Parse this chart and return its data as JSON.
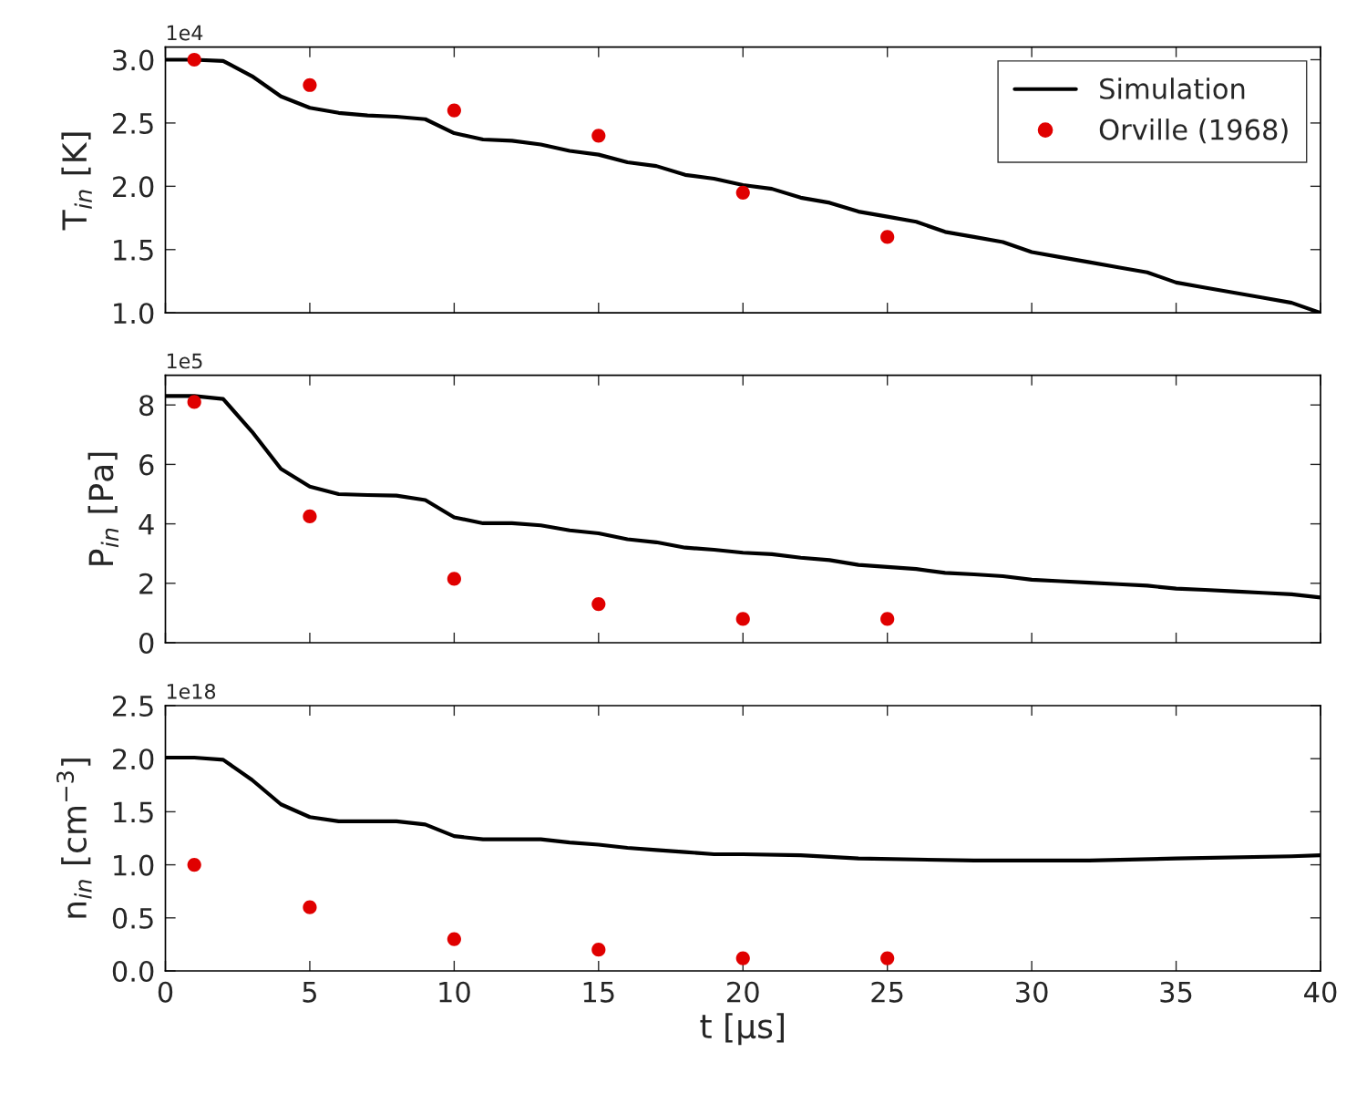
{
  "chart_data": [
    {
      "type": "line",
      "ylabel": "T$_{in}$ [K]",
      "annotations": [
        "1e4"
      ],
      "xlim": [
        0,
        40
      ],
      "xticks": [
        0,
        5,
        10,
        15,
        20,
        25,
        30,
        35,
        40
      ],
      "ylim": [
        1.0,
        3.1
      ],
      "yticks": [
        {
          "value": 1.0,
          "label": "1.0"
        },
        {
          "value": 1.5,
          "label": "1.5"
        },
        {
          "value": 2.0,
          "label": "2.0"
        },
        {
          "value": 2.5,
          "label": "2.5"
        },
        {
          "value": 3.0,
          "label": "3.0"
        }
      ],
      "tick_labels": "y",
      "grid": false,
      "legend": "top right",
      "series": [
        {
          "name": "Simulation",
          "color": "#000000",
          "marker": "none",
          "x": [
            0,
            1,
            2,
            3,
            4,
            5,
            6,
            7,
            8,
            9,
            10,
            11,
            12,
            13,
            14,
            15,
            16,
            17,
            18,
            19,
            20,
            21,
            22,
            23,
            24,
            25,
            26,
            27,
            28,
            29,
            30,
            31,
            32,
            33,
            34,
            35,
            36,
            37,
            38,
            39,
            40
          ],
          "values": [
            3.0,
            3.0,
            2.99,
            2.87,
            2.71,
            2.62,
            2.58,
            2.56,
            2.55,
            2.53,
            2.42,
            2.37,
            2.36,
            2.33,
            2.28,
            2.25,
            2.19,
            2.16,
            2.09,
            2.06,
            2.01,
            1.98,
            1.91,
            1.87,
            1.8,
            1.76,
            1.72,
            1.64,
            1.6,
            1.56,
            1.48,
            1.44,
            1.4,
            1.36,
            1.32,
            1.24,
            1.2,
            1.16,
            1.12,
            1.08,
            1.0
          ]
        },
        {
          "name": "Orville (1968)",
          "type": "scatter",
          "color": "#e00000",
          "marker": "circle",
          "x": [
            1,
            5,
            10,
            15,
            20,
            25
          ],
          "values": [
            3.0,
            2.8,
            2.6,
            2.4,
            1.95,
            1.6
          ]
        }
      ]
    },
    {
      "type": "line",
      "ylabel": "P$_{in}$ [Pa]",
      "annotations": [
        "1e5"
      ],
      "xlim": [
        0,
        40
      ],
      "xticks": [
        0,
        5,
        10,
        15,
        20,
        25,
        30,
        35,
        40
      ],
      "ylim": [
        0,
        9
      ],
      "yticks": [
        0,
        2,
        4,
        6,
        8
      ],
      "tick_labels": "y",
      "grid": false,
      "series": [
        {
          "color": "#000000",
          "marker": "none",
          "x": [
            0,
            1,
            2,
            3,
            4,
            5,
            6,
            7,
            8,
            9,
            10,
            11,
            12,
            13,
            14,
            15,
            16,
            17,
            18,
            19,
            20,
            21,
            22,
            23,
            24,
            25,
            26,
            27,
            28,
            29,
            30,
            31,
            32,
            33,
            34,
            35,
            36,
            37,
            38,
            39,
            40
          ],
          "values": [
            8.3,
            8.3,
            8.2,
            7.1,
            5.85,
            5.25,
            5.0,
            4.97,
            4.95,
            4.8,
            4.22,
            4.02,
            4.02,
            3.95,
            3.78,
            3.68,
            3.48,
            3.38,
            3.2,
            3.13,
            3.03,
            2.98,
            2.86,
            2.78,
            2.62,
            2.55,
            2.48,
            2.35,
            2.3,
            2.24,
            2.12,
            2.07,
            2.02,
            1.97,
            1.92,
            1.82,
            1.78,
            1.73,
            1.68,
            1.63,
            1.52
          ]
        },
        {
          "type": "scatter",
          "color": "#e00000",
          "marker": "circle",
          "x": [
            1,
            5,
            10,
            15,
            20,
            25
          ],
          "values": [
            8.1,
            4.25,
            2.15,
            1.3,
            0.8,
            0.8
          ]
        }
      ]
    },
    {
      "type": "line",
      "xlabel": "t [μs]",
      "ylabel": "n$_{in}$ [cm$^{−3}$]",
      "annotations": [
        "1e18"
      ],
      "xlim": [
        0,
        40
      ],
      "xticks": [
        0,
        5,
        10,
        15,
        20,
        25,
        30,
        35,
        40
      ],
      "ylim": [
        0,
        2.5
      ],
      "yticks": [
        {
          "value": 0,
          "label": "0.0"
        },
        {
          "value": 0.5,
          "label": "0.5"
        },
        {
          "value": 1.0,
          "label": "1.0"
        },
        {
          "value": 1.5,
          "label": "1.5"
        },
        {
          "value": 2.0,
          "label": "2.0"
        },
        {
          "value": 2.5,
          "label": "2.5"
        }
      ],
      "grid": false,
      "series": [
        {
          "color": "#000000",
          "marker": "none",
          "x": [
            0,
            1,
            2,
            3,
            4,
            5,
            6,
            7,
            8,
            9,
            10,
            11,
            12,
            13,
            14,
            15,
            16,
            17,
            18,
            19,
            20,
            22,
            24,
            26,
            28,
            30,
            32,
            35,
            39,
            40
          ],
          "values": [
            2.01,
            2.01,
            1.99,
            1.8,
            1.57,
            1.45,
            1.41,
            1.41,
            1.41,
            1.38,
            1.27,
            1.24,
            1.24,
            1.24,
            1.21,
            1.19,
            1.16,
            1.14,
            1.12,
            1.1,
            1.1,
            1.09,
            1.06,
            1.05,
            1.04,
            1.04,
            1.04,
            1.06,
            1.08,
            1.09
          ]
        },
        {
          "type": "scatter",
          "color": "#e00000",
          "marker": "circle",
          "x": [
            1,
            5,
            10,
            15,
            20,
            25
          ],
          "values": [
            1.0,
            0.6,
            0.3,
            0.2,
            0.12,
            0.12
          ]
        }
      ]
    }
  ]
}
